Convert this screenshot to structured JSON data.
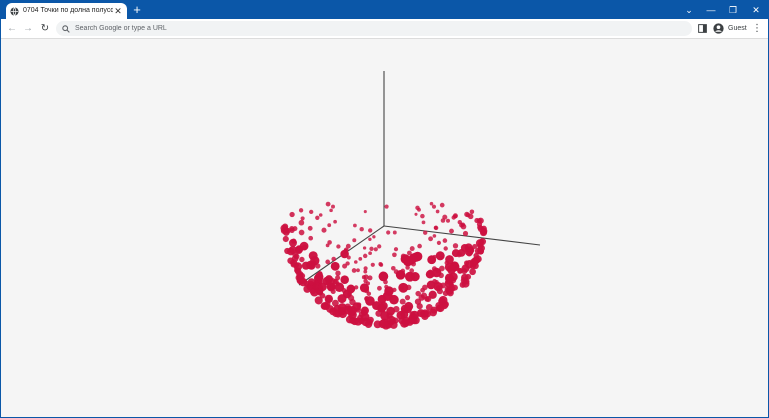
{
  "browser": {
    "tab": {
      "title": "0704 Точки по долна полусфе",
      "favicon": "globe-icon",
      "close_icon": "close-icon"
    },
    "new_tab_icon": "plus-icon",
    "window_controls": [
      "chevron-down-icon",
      "minimize-icon",
      "restore-icon",
      "close-icon"
    ],
    "toolbar": {
      "back_icon": "arrow-left-icon",
      "forward_icon": "arrow-right-icon",
      "reload_icon": "reload-icon",
      "omnibox_placeholder": "Search Google or type a URL",
      "side_panel_icon": "side-panel-icon",
      "profile_label": "Guest",
      "menu_icon": "kebab-menu-icon"
    }
  },
  "scene": {
    "description": "3D scatter of points on the lower hemisphere with three axes",
    "point_color": "#cc1040",
    "axis_color": "#444444",
    "background": "#f5f5f5"
  }
}
